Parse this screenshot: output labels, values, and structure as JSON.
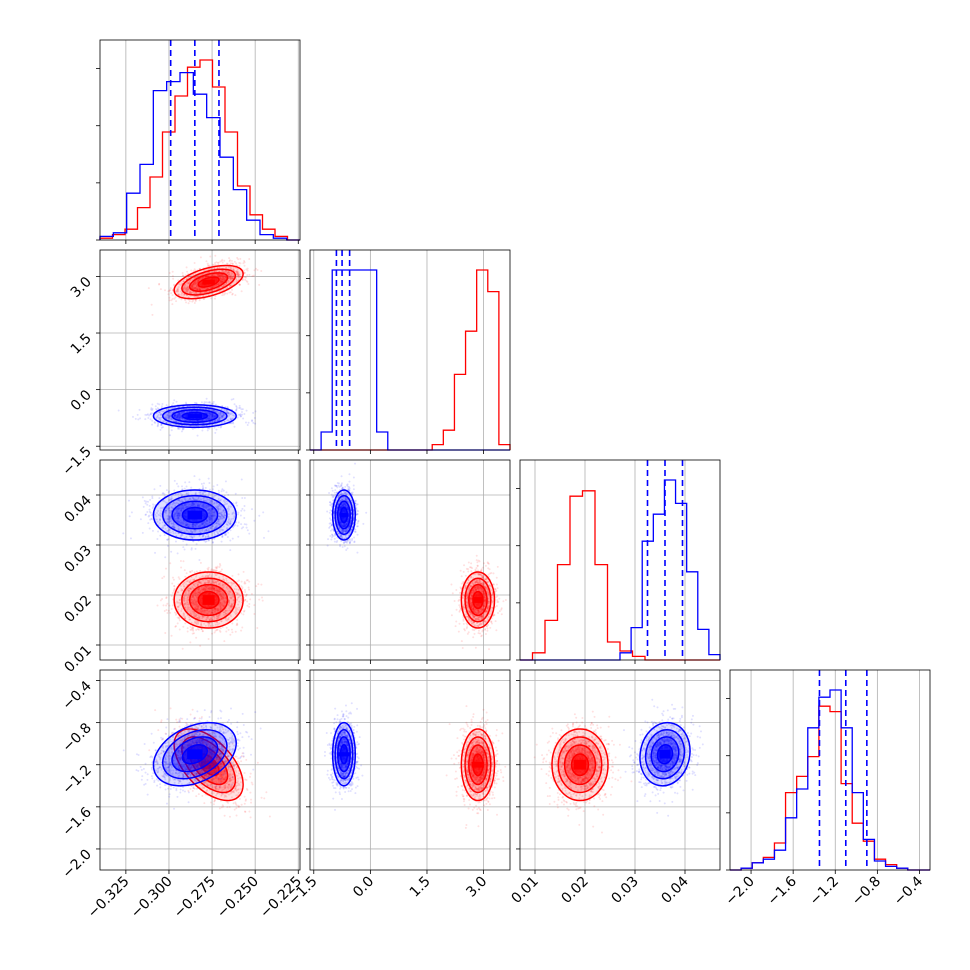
{
  "chart_data": {
    "type": "corner",
    "title": "",
    "params": [
      {
        "ticks": [
          -0.325,
          -0.3,
          -0.275,
          -0.25,
          -0.225
        ],
        "tick_labels": [
          "−0.325",
          "−0.300",
          "−0.275",
          "−0.250",
          "−0.225"
        ],
        "range": [
          -0.34,
          -0.224
        ]
      },
      {
        "ticks": [
          -1.5,
          0.0,
          1.5,
          3.0
        ],
        "tick_labels": [
          "−1.5",
          "0.0",
          "1.5",
          "3.0"
        ],
        "range": [
          -1.6,
          3.7
        ]
      },
      {
        "ticks": [
          0.01,
          0.02,
          0.03,
          0.04
        ],
        "tick_labels": [
          "0.01",
          "0.02",
          "0.03",
          "0.04"
        ],
        "range": [
          0.007,
          0.047
        ]
      },
      {
        "ticks": [
          -2.0,
          -1.6,
          -1.2,
          -0.8,
          -0.4
        ],
        "tick_labels": [
          "−2.0",
          "−1.6",
          "−1.2",
          "−0.8",
          "−0.4"
        ],
        "range": [
          -2.2,
          -0.3
        ]
      }
    ],
    "series": [
      {
        "color": "#ff0000",
        "means": [
          -0.277,
          2.85,
          0.019,
          -1.2
        ],
        "sds": [
          0.01,
          0.22,
          0.0028,
          0.17
        ],
        "corr": {
          "0-1": 0.5,
          "0-3": -0.55
        },
        "hist_heights": [
          [
            0.01,
            0.03,
            0.06,
            0.18,
            0.35,
            0.6,
            0.8,
            0.96,
            1.0,
            0.85,
            0.6,
            0.3,
            0.14,
            0.06,
            0.02,
            0.0
          ],
          [
            0.0,
            0.0,
            0.0,
            0.0,
            0.0,
            0.0,
            0.0,
            0.0,
            0.0,
            0.0,
            0.0,
            0.03,
            0.11,
            0.42,
            0.66,
            1.0,
            0.88,
            0.03
          ],
          [
            0.0,
            0.04,
            0.22,
            0.53,
            0.91,
            0.94,
            0.53,
            0.1,
            0.05,
            0.02,
            0.0,
            0.0,
            0.0,
            0.0,
            0.0,
            0.0
          ],
          [
            0.0,
            0.01,
            0.04,
            0.07,
            0.15,
            0.43,
            0.52,
            0.63,
            0.91,
            0.88,
            0.48,
            0.26,
            0.16,
            0.06,
            0.03,
            0.01,
            0.0,
            0.0
          ]
        ]
      },
      {
        "color": "#0000ff",
        "means": [
          -0.285,
          -0.7,
          0.036,
          -1.1
        ],
        "sds": [
          0.012,
          0.15,
          0.0025,
          0.15
        ],
        "corr": {
          "0-3": 0.35,
          "2-3": 0.1
        },
        "hist_heights": [
          [
            0.02,
            0.04,
            0.26,
            0.42,
            0.83,
            0.88,
            0.93,
            0.81,
            0.68,
            0.46,
            0.28,
            0.11,
            0.03,
            0.01,
            0.0
          ],
          [
            0.0,
            0.1,
            1.0,
            1.0,
            1.0,
            1.0,
            0.1,
            0.0,
            0.0,
            0.0,
            0.0,
            0.0,
            0.0,
            0.0,
            0.0,
            0.0,
            0.0,
            0.0
          ],
          [
            0.0,
            0.0,
            0.0,
            0.0,
            0.0,
            0.0,
            0.0,
            0.0,
            0.0,
            0.04,
            0.18,
            0.66,
            0.81,
            1.0,
            0.87,
            0.49,
            0.17,
            0.03
          ],
          [
            0.0,
            0.01,
            0.04,
            0.06,
            0.11,
            0.29,
            0.45,
            0.79,
            0.96,
            1.0,
            0.79,
            0.43,
            0.17,
            0.05,
            0.02,
            0.01,
            0.0,
            0.0
          ]
        ],
        "quantiles": [
          [
            -0.299,
            -0.285,
            -0.271
          ],
          [
            -0.9,
            -0.75,
            -0.55
          ],
          [
            0.0325,
            0.036,
            0.0395
          ],
          [
            -1.35,
            -1.1,
            -0.9
          ]
        ]
      }
    ],
    "grid": true,
    "legend": "none"
  }
}
